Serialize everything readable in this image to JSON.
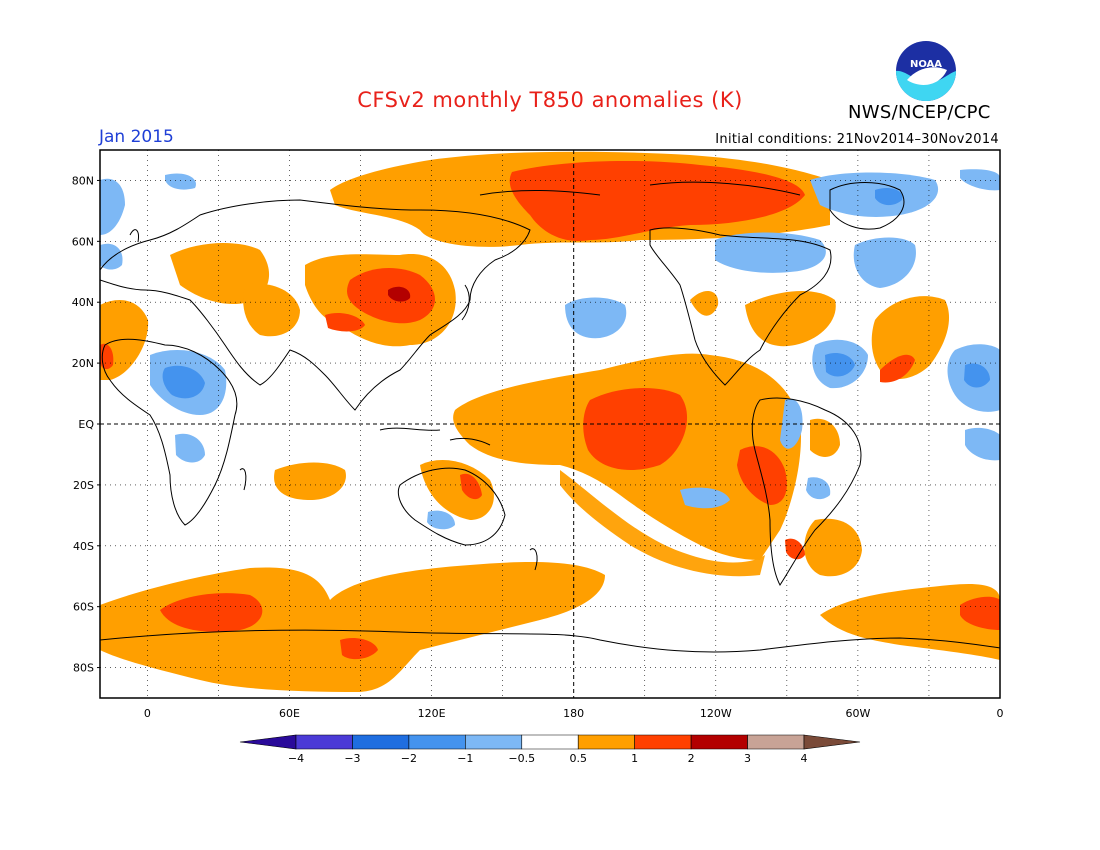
{
  "header": {
    "title": "CFSv2 monthly T850 anomalies (K)",
    "month": "Jan 2015",
    "initial_conditions": "Initial conditions: 21Nov2014–30Nov2014",
    "agency": "NWS/NCEP/CPC",
    "logo_text": "NOAA"
  },
  "colors": {
    "title": "#e8211a",
    "month": "#1f3fd6",
    "frame": "#000000"
  },
  "map": {
    "projection": "cylindrical equidistant",
    "lon_range": [
      -20,
      360
    ],
    "lat_range": [
      -90,
      90
    ],
    "lat_labels": [
      "80N",
      "60N",
      "40N",
      "20N",
      "EQ",
      "20S",
      "40S",
      "60S",
      "80S"
    ],
    "lat_values": [
      80,
      60,
      40,
      20,
      0,
      -20,
      -40,
      -60,
      -80
    ],
    "lon_labels": [
      "0",
      "60E",
      "120E",
      "180",
      "120W",
      "60W",
      "0"
    ],
    "lon_values": [
      0,
      60,
      120,
      180,
      240,
      300,
      360
    ]
  },
  "legend": {
    "tick_labels": [
      "−4",
      "−3",
      "−2",
      "−1",
      "−0.5",
      "0.5",
      "1",
      "2",
      "3",
      "4"
    ],
    "colors": [
      "#2a0a9a",
      "#4b3ad6",
      "#1f6ee0",
      "#4493ee",
      "#7db8f5",
      "#ffffff",
      "#ff9f00",
      "#ff4000",
      "#b30000",
      "#c8a396",
      "#7a4a38"
    ]
  }
}
